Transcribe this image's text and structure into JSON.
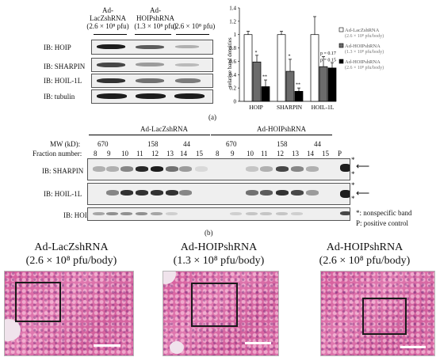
{
  "panel_a": {
    "headers": [
      {
        "line1": "Ad-",
        "line2": "LacZshRNA",
        "line3": "(2.6 × 10⁸ pfu)"
      },
      {
        "line1": "Ad-",
        "line2": "HOIPshRNA",
        "line3": "(1.3 × 10⁸ pfu)"
      },
      {
        "line1": "",
        "line2": "",
        "line3": "(2.6 × 10⁸ pfu)"
      }
    ],
    "blot_labels": [
      "IB: HOIP",
      "IB: SHARPIN",
      "IB: HOIL-1L",
      "IB: tubulin"
    ],
    "label": "(a)"
  },
  "chart_data": {
    "type": "bar",
    "categories": [
      "HOIP",
      "SHARPIN",
      "HOIL-1L"
    ],
    "series": [
      {
        "name": "Ad-LacZshRNA (2.6 × 10⁸ pfu/body)",
        "values": [
          1.0,
          1.0,
          1.0
        ],
        "errors": [
          0.05,
          0.05,
          0.27
        ],
        "color": "#ffffff"
      },
      {
        "name": "Ad-HOIPshRNA (1.3 × 10⁸ pfu/body)",
        "values": [
          0.59,
          0.45,
          0.52
        ],
        "errors": [
          0.1,
          0.18,
          0.15
        ],
        "color": "#6b6b6b"
      },
      {
        "name": "Ad-HOIPshRNA (2.6 × 10⁸ pfu/body)",
        "values": [
          0.22,
          0.15,
          0.5
        ],
        "errors": [
          0.1,
          0.05,
          0.08
        ],
        "color": "#000000"
      }
    ],
    "annotations": [
      "*",
      "**",
      "*",
      "**",
      "p = 0.17",
      "p = 0.15"
    ],
    "ylabel": "relative band densities",
    "yticks": [
      "0",
      "0.2",
      "0.4",
      "0.6",
      "0.8",
      "1",
      "1.2",
      "1.4"
    ],
    "ylim": [
      0,
      1.4
    ],
    "legend_position": "right"
  },
  "panel_b": {
    "group_left": "Ad-LacZshRNA",
    "group_right": "Ad-HOIPshRNA",
    "mw_label": "MW (kD):",
    "mw_left": [
      "670",
      "158",
      "44"
    ],
    "mw_right": [
      "670",
      "158",
      "44"
    ],
    "fraction_label": "Fraction number:",
    "fractions_left": [
      "8",
      "9",
      "10",
      "11",
      "12",
      "13",
      "14",
      "15"
    ],
    "fractions_right": [
      "8",
      "9",
      "10",
      "11",
      "12",
      "13",
      "14",
      "15"
    ],
    "positive_lane": "P",
    "blot_labels": [
      "IB: SHARPIN",
      "IB: HOIL-1L",
      "IB: HOIP"
    ],
    "star": "*",
    "footnote1": "*: nonspecific band",
    "footnote2": "P:  positive control",
    "label": "(b)"
  },
  "panel_c": [
    {
      "title": "Ad-LacZshRNA",
      "dose": "(2.6 × 10⁸ pfu/body)"
    },
    {
      "title": "Ad-HOIPshRNA",
      "dose": "(1.3 × 10⁸ pfu/body)"
    },
    {
      "title": "Ad-HOIPshRNA",
      "dose": "(2.6 × 10⁸ pfu/body)"
    }
  ]
}
